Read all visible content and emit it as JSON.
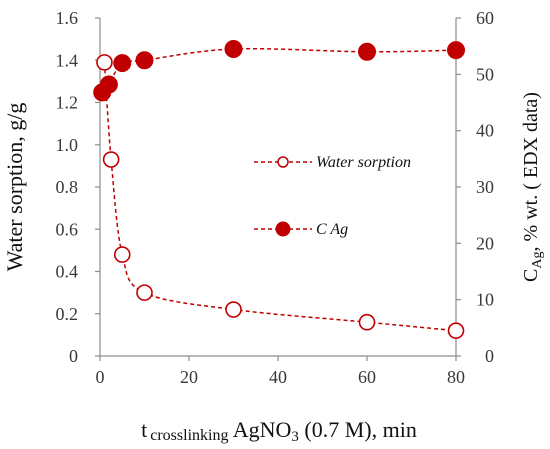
{
  "chart_data": {
    "type": "scatter",
    "x": {
      "title_prefix": "t",
      "title_sub": "crosslinking",
      "title_main": " AgNO",
      "title_sub2": "3",
      "title_suffix": " (0.7 M), min",
      "range": [
        0,
        80
      ],
      "ticks": [
        "0",
        "20",
        "40",
        "60",
        "80"
      ]
    },
    "y_left": {
      "title": "Water sorption, g/g",
      "range": [
        0,
        1.6
      ],
      "ticks": [
        "0",
        "0.2",
        "0.4",
        "0.6",
        "0.8",
        "1.0",
        "1.2",
        "1.4",
        "1.6"
      ]
    },
    "y_right": {
      "title_main": "C",
      "title_sub": "Ag",
      "title_rest": ", % wt. ( EDX data)",
      "range": [
        0,
        60
      ],
      "ticks": [
        "0",
        "10",
        "20",
        "30",
        "40",
        "50",
        "60"
      ]
    },
    "series": [
      {
        "name": "Water sorption",
        "axis": "left",
        "marker": "open-circle",
        "line": "dashed",
        "color": "#c00000",
        "x": [
          1,
          2.5,
          5,
          10,
          30,
          60,
          80
        ],
        "y": [
          1.39,
          0.93,
          0.48,
          0.3,
          0.22,
          0.16,
          0.12
        ]
      },
      {
        "name": "C Ag",
        "axis": "right",
        "marker": "filled-circle",
        "line": "dashed",
        "color": "#c00000",
        "x": [
          0.5,
          2,
          5,
          10,
          30,
          60,
          80
        ],
        "y": [
          46.8,
          48.2,
          52,
          52.5,
          54.5,
          54,
          54.3
        ]
      }
    ],
    "legend": {
      "placement": "center-right"
    },
    "grid": false
  }
}
